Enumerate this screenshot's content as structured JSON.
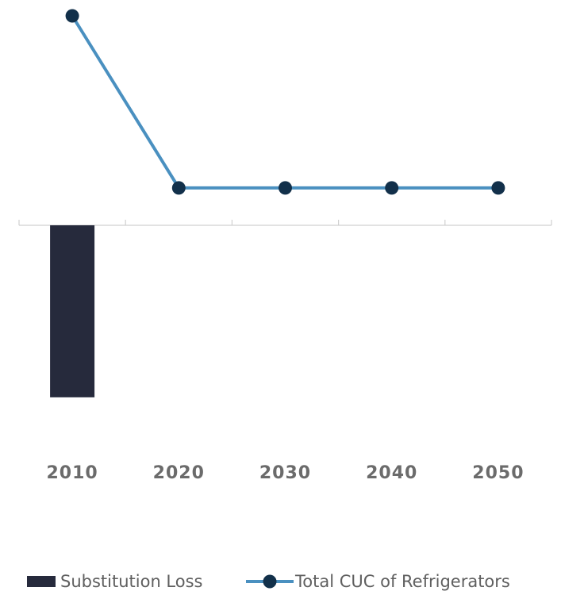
{
  "chart_data": {
    "type": "bar+line",
    "categories": [
      "2010",
      "2020",
      "2030",
      "2040",
      "2050"
    ],
    "series": [
      {
        "name": "Substitution Loss",
        "type": "bar",
        "values": [
          -2.3,
          null,
          null,
          null,
          null
        ],
        "color": "#262a3c"
      },
      {
        "name": "Total CUC of Refrigerators",
        "type": "line",
        "values": [
          2.8,
          0.5,
          0.5,
          0.5,
          0.5
        ],
        "color": "#4a90c0",
        "marker_color": "#12304a"
      }
    ],
    "ylim": [
      -2.8,
      2.8
    ],
    "grid": false,
    "legend": "bottom",
    "colors": {
      "axis": "#d0d0d0",
      "tick_label": "#6b6b6b",
      "legend_text": "#5f5f5f"
    }
  }
}
